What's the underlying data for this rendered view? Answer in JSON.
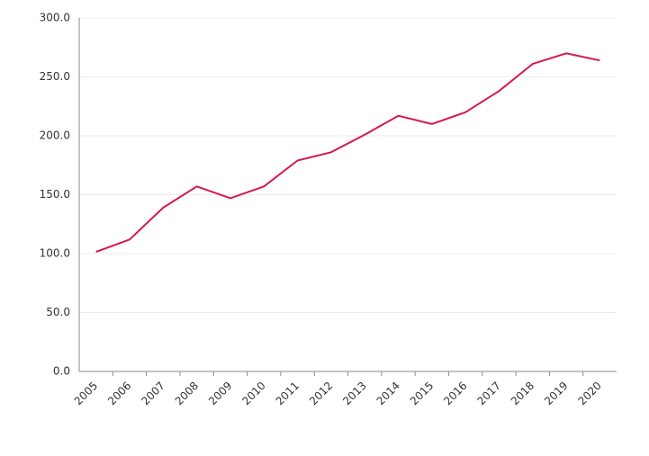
{
  "chart_data": {
    "type": "line",
    "categories": [
      "2005",
      "2006",
      "2007",
      "2008",
      "2009",
      "2010",
      "2011",
      "2012",
      "2013",
      "2014",
      "2015",
      "2016",
      "2017",
      "2018",
      "2019",
      "2020"
    ],
    "values": [
      101.5,
      112,
      139,
      157,
      147,
      157,
      179,
      186,
      201,
      217,
      210,
      220,
      238,
      261,
      270,
      264
    ],
    "color": "#d6184f",
    "ylim": [
      0,
      300
    ],
    "yticks": [
      {
        "value": 0,
        "label": "0.0"
      },
      {
        "value": 50,
        "label": "50.0"
      },
      {
        "value": 100,
        "label": "100.0"
      },
      {
        "value": 150,
        "label": "150.0"
      },
      {
        "value": 200,
        "label": "200.0"
      },
      {
        "value": 250,
        "label": "250.0"
      },
      {
        "value": 300,
        "label": "300.0"
      }
    ],
    "grid": true
  }
}
